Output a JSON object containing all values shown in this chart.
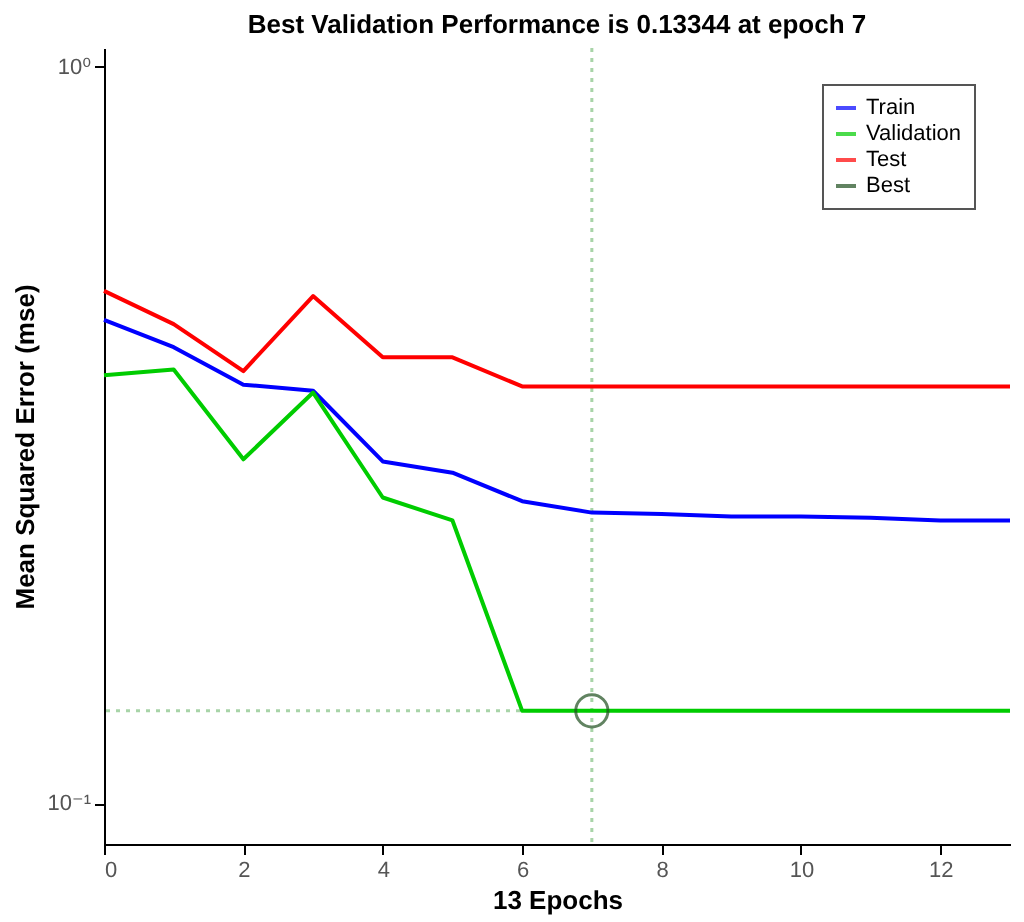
{
  "chart_data": {
    "type": "line",
    "title": "Best Validation Performance is 0.13344 at epoch 7",
    "xlabel": "13 Epochs",
    "ylabel": "Mean Squared Error  (mse)",
    "x": [
      0,
      1,
      2,
      3,
      4,
      5,
      6,
      7,
      8,
      9,
      10,
      11,
      12,
      13
    ],
    "series": [
      {
        "name": "Train",
        "color": "#0000ff",
        "values": [
          0.453,
          0.416,
          0.37,
          0.363,
          0.291,
          0.281,
          0.257,
          0.248,
          0.247,
          0.245,
          0.245,
          0.244,
          0.242,
          0.242
        ]
      },
      {
        "name": "Validation",
        "color": "#00cc00",
        "values": [
          0.381,
          0.388,
          0.293,
          0.361,
          0.26,
          0.242,
          0.13344,
          0.13344,
          0.13344,
          0.13344,
          0.13344,
          0.13344,
          0.13344,
          0.13344
        ]
      },
      {
        "name": "Test",
        "color": "#ff0000",
        "values": [
          0.496,
          0.447,
          0.386,
          0.488,
          0.403,
          0.403,
          0.368,
          0.368,
          0.368,
          0.368,
          0.368,
          0.368,
          0.368,
          0.368
        ]
      },
      {
        "name": "Best",
        "type": "scatter",
        "marker": "circle",
        "color": "#1f4f1f",
        "x": [
          7
        ],
        "values": [
          0.13344
        ]
      }
    ],
    "log": "y",
    "xlim": [
      0,
      13
    ],
    "ylim": [
      0.088,
      1.06
    ],
    "xticks": [
      0,
      2,
      4,
      6,
      8,
      10,
      12
    ],
    "yticks": [
      {
        "value": 0.1,
        "label": "10⁻¹"
      },
      {
        "value": 1,
        "label": "10⁰"
      }
    ],
    "ref_lines": [
      {
        "axis": "x",
        "value": 7,
        "color": "#a8d4a8",
        "line_style": "dotted"
      },
      {
        "axis": "y",
        "value": 0.13344,
        "color": "#a8d4a8",
        "line_style": "dotted"
      }
    ],
    "legend": "top right"
  }
}
